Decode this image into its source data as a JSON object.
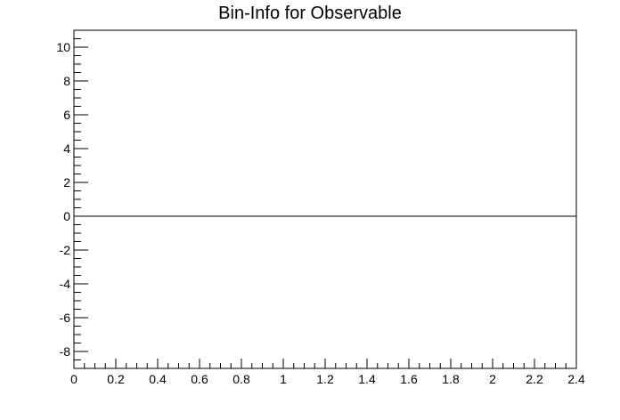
{
  "chart_data": {
    "type": "line",
    "title": "Bin-Info for Observable",
    "xlabel": "",
    "ylabel": "",
    "xlim": [
      0,
      2.4
    ],
    "ylim": [
      -9,
      11
    ],
    "x_ticks": [
      "0",
      "0.2",
      "0.4",
      "0.6",
      "0.8",
      "1",
      "1.2",
      "1.4",
      "1.6",
      "1.8",
      "2",
      "2.2",
      "2.4"
    ],
    "y_ticks": [
      "-8",
      "-6",
      "-4",
      "-2",
      "0",
      "2",
      "4",
      "6",
      "8",
      "10"
    ],
    "grid": false,
    "series": [
      {
        "x": [
          0,
          2.4
        ],
        "values": [
          0,
          0
        ],
        "color": "#000000"
      }
    ]
  }
}
